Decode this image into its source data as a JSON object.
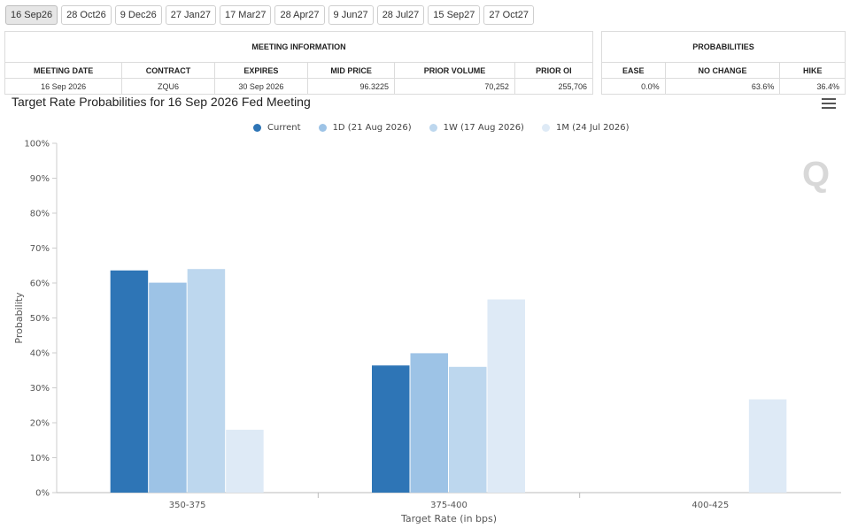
{
  "tabs": [
    {
      "label": "16 Sep26",
      "active": true
    },
    {
      "label": "28 Oct26",
      "active": false
    },
    {
      "label": "9 Dec26",
      "active": false
    },
    {
      "label": "27 Jan27",
      "active": false
    },
    {
      "label": "17 Mar27",
      "active": false
    },
    {
      "label": "28 Apr27",
      "active": false
    },
    {
      "label": "9 Jun27",
      "active": false
    },
    {
      "label": "28 Jul27",
      "active": false
    },
    {
      "label": "15 Sep27",
      "active": false
    },
    {
      "label": "27 Oct27",
      "active": false
    }
  ],
  "meeting_info": {
    "heading": "MEETING INFORMATION",
    "columns": [
      "MEETING DATE",
      "CONTRACT",
      "EXPIRES",
      "MID PRICE",
      "PRIOR VOLUME",
      "PRIOR OI"
    ],
    "row": [
      "16 Sep 2026",
      "ZQU6",
      "30 Sep 2026",
      "96.3225",
      "70,252",
      "255,706"
    ]
  },
  "probabilities": {
    "heading": "PROBABILITIES",
    "columns": [
      "EASE",
      "NO CHANGE",
      "HIKE"
    ],
    "row": [
      "0.0%",
      "63.6%",
      "36.4%"
    ]
  },
  "chart_title": "Target Rate Probabilities for 16 Sep 2026 Fed Meeting",
  "menu_icon": "hamburger-menu-icon",
  "watermark": "Q",
  "chart_data": {
    "type": "bar",
    "title": "Target Rate Probabilities for 16 Sep 2026 Fed Meeting",
    "xlabel": "Target Rate (in bps)",
    "ylabel": "Probability",
    "ylim": [
      0,
      100
    ],
    "yticks": [
      "0%",
      "10%",
      "20%",
      "30%",
      "40%",
      "50%",
      "60%",
      "70%",
      "80%",
      "90%",
      "100%"
    ],
    "categories": [
      "350-375",
      "375-400",
      "400-425"
    ],
    "grid": false,
    "legend_position": "top-center",
    "series": [
      {
        "name": "Current",
        "color": "#2e75b6",
        "values": [
          63.6,
          36.4,
          0
        ]
      },
      {
        "name": "1D (21 Aug 2026)",
        "color": "#9dc3e6",
        "values": [
          60.1,
          39.9,
          0
        ]
      },
      {
        "name": "1W (17 Aug 2026)",
        "color": "#bdd7ee",
        "values": [
          64.0,
          36.0,
          0
        ]
      },
      {
        "name": "1M (24 Jul 2026)",
        "color": "#deeaf6",
        "values": [
          18.0,
          55.3,
          26.7
        ]
      }
    ]
  }
}
